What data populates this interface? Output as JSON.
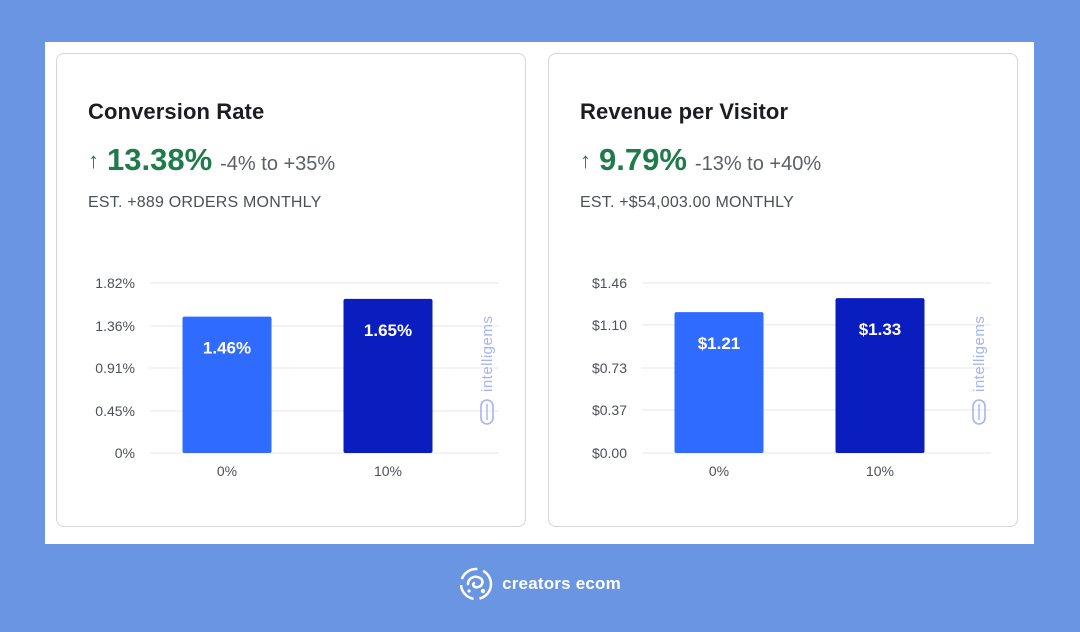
{
  "cards": [
    {
      "title": "Conversion Rate",
      "arrow": "↑",
      "lift": "13.38%",
      "range": "-4% to +35%",
      "estimate": "EST. +889 ORDERS MONTHLY",
      "watermark": "intelligems"
    },
    {
      "title": "Revenue per Visitor",
      "arrow": "↑",
      "lift": "9.79%",
      "range": "-13% to +40%",
      "estimate": "EST. +$54,003.00 MONTHLY",
      "watermark": "intelligems"
    }
  ],
  "chart_data": [
    {
      "type": "bar",
      "categories": [
        "0%",
        "10%"
      ],
      "values": [
        1.46,
        1.65
      ],
      "value_labels": [
        "1.46%",
        "1.65%"
      ],
      "yticks": [
        0,
        0.45,
        0.91,
        1.36,
        1.82
      ],
      "ytick_labels": [
        "0%",
        "0.45%",
        "0.91%",
        "1.36%",
        "1.82%"
      ],
      "ylim": [
        0,
        1.82
      ],
      "colors": [
        "#2f6bff",
        "#0a1ebf"
      ],
      "grid": true
    },
    {
      "type": "bar",
      "categories": [
        "0%",
        "10%"
      ],
      "values": [
        1.21,
        1.33
      ],
      "value_labels": [
        "$1.21",
        "$1.33"
      ],
      "yticks": [
        0,
        0.37,
        0.73,
        1.1,
        1.46
      ],
      "ytick_labels": [
        "$0.00",
        "$0.37",
        "$0.73",
        "$1.10",
        "$1.46"
      ],
      "ylim": [
        0,
        1.46
      ],
      "colors": [
        "#2f6bff",
        "#0a1ebf"
      ],
      "grid": true
    }
  ],
  "footer": {
    "brand": "creators ecom",
    "logo_icon": "swirl-logo-icon"
  }
}
